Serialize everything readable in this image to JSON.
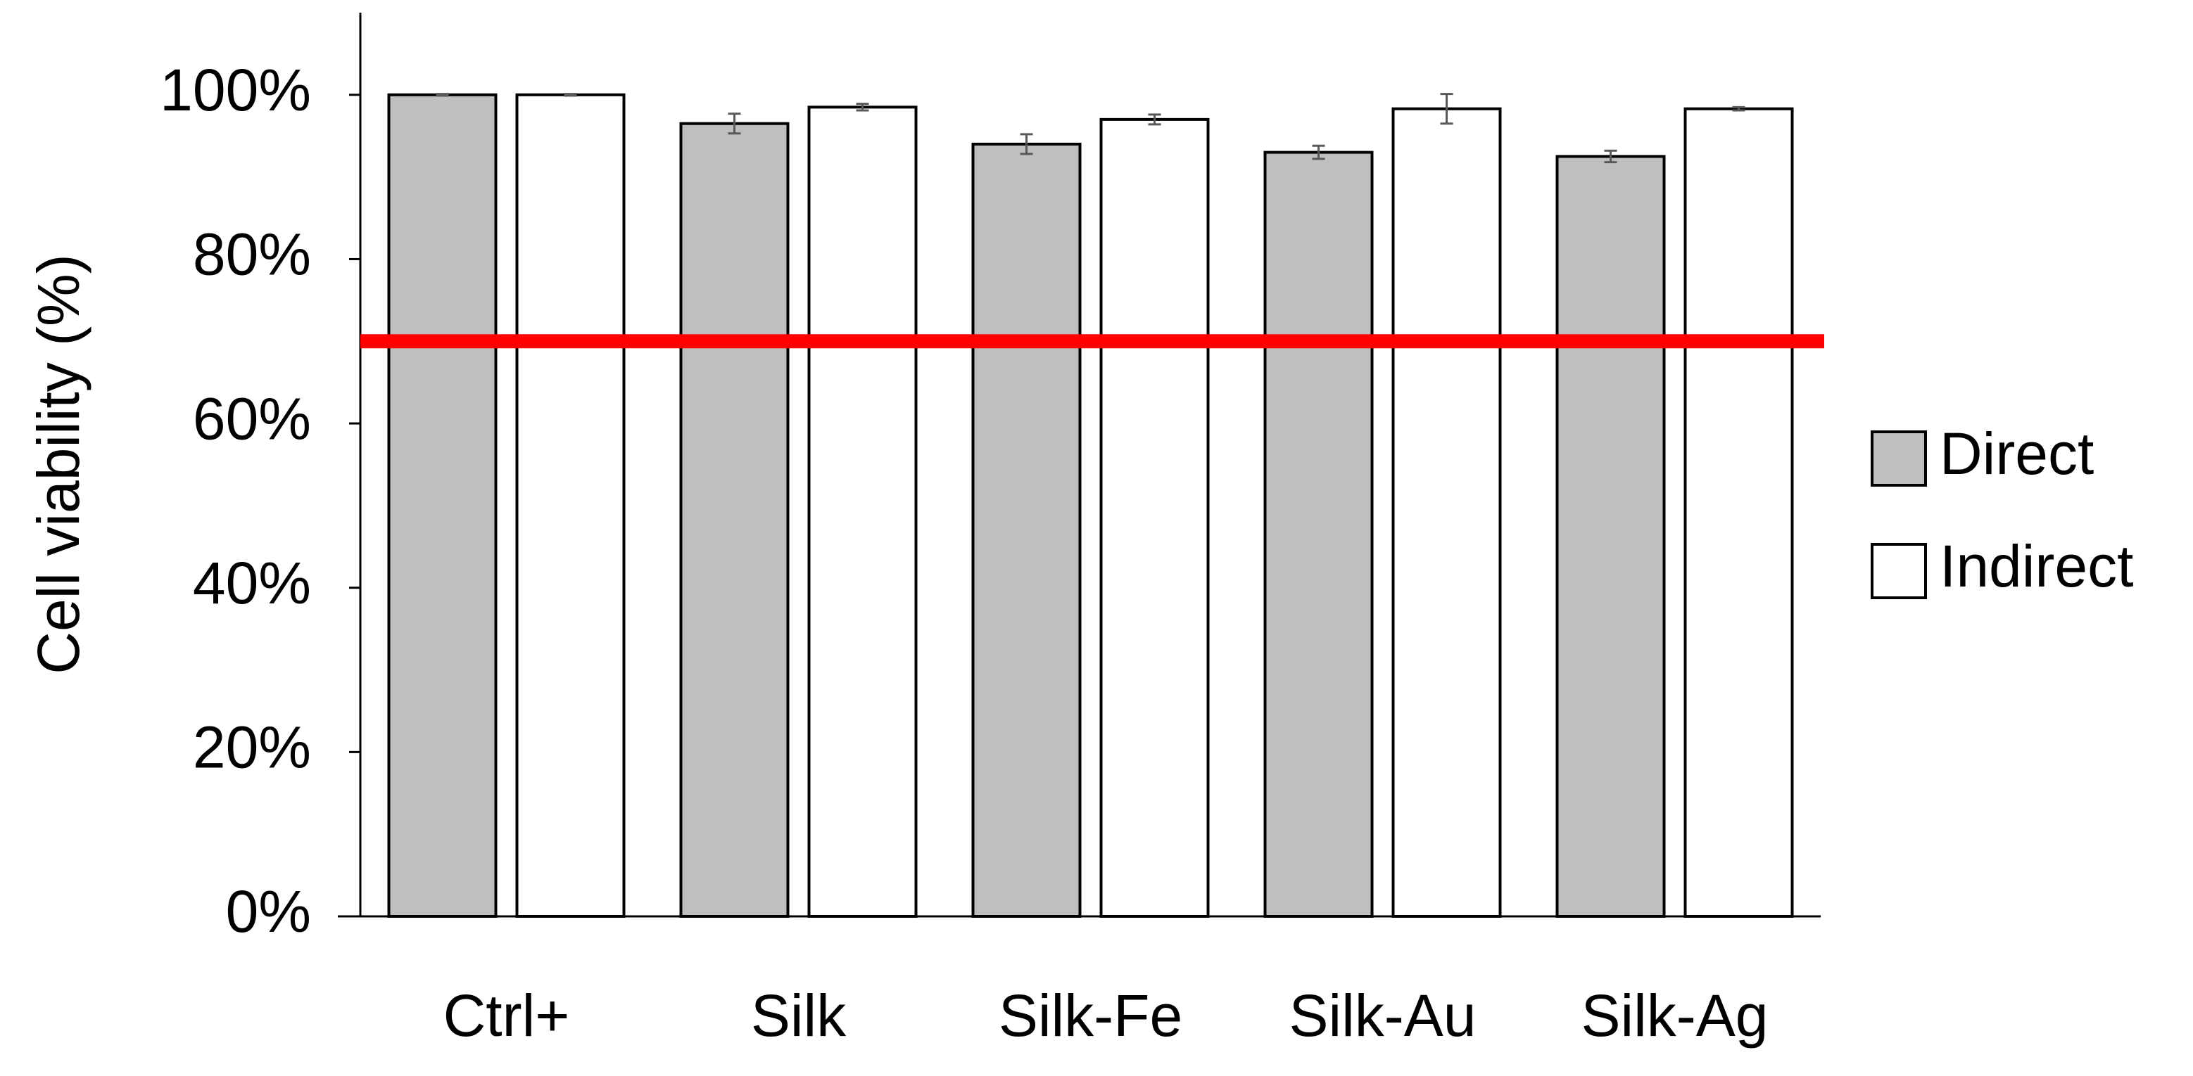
{
  "chart_data": {
    "type": "bar",
    "y_label": "Cell viability (%)",
    "categories": [
      "Ctrl+",
      "Silk",
      "Silk-Fe",
      "Silk-Au",
      "Silk-Ag"
    ],
    "series": [
      {
        "name": "Direct",
        "color": "#bfbfbf",
        "values": [
          100,
          96.5,
          94,
          93,
          92.5
        ],
        "errors": [
          0.1,
          1.2,
          1.2,
          0.8,
          0.7
        ]
      },
      {
        "name": "Indirect",
        "color": "#ffffff",
        "values": [
          100,
          98.5,
          97,
          98.3,
          98.3
        ],
        "errors": [
          0.1,
          0.4,
          0.6,
          1.8,
          0.2
        ]
      }
    ],
    "ylim": [
      0,
      110
    ],
    "yticks": [
      {
        "value": 0,
        "label": "0%"
      },
      {
        "value": 20,
        "label": "20%"
      },
      {
        "value": 40,
        "label": "40%"
      },
      {
        "value": 60,
        "label": "60%"
      },
      {
        "value": 80,
        "label": "80%"
      },
      {
        "value": 100,
        "label": "100%"
      }
    ],
    "threshold": 70,
    "threshold_color": "#ff0000",
    "legend": "right",
    "grid": false
  }
}
